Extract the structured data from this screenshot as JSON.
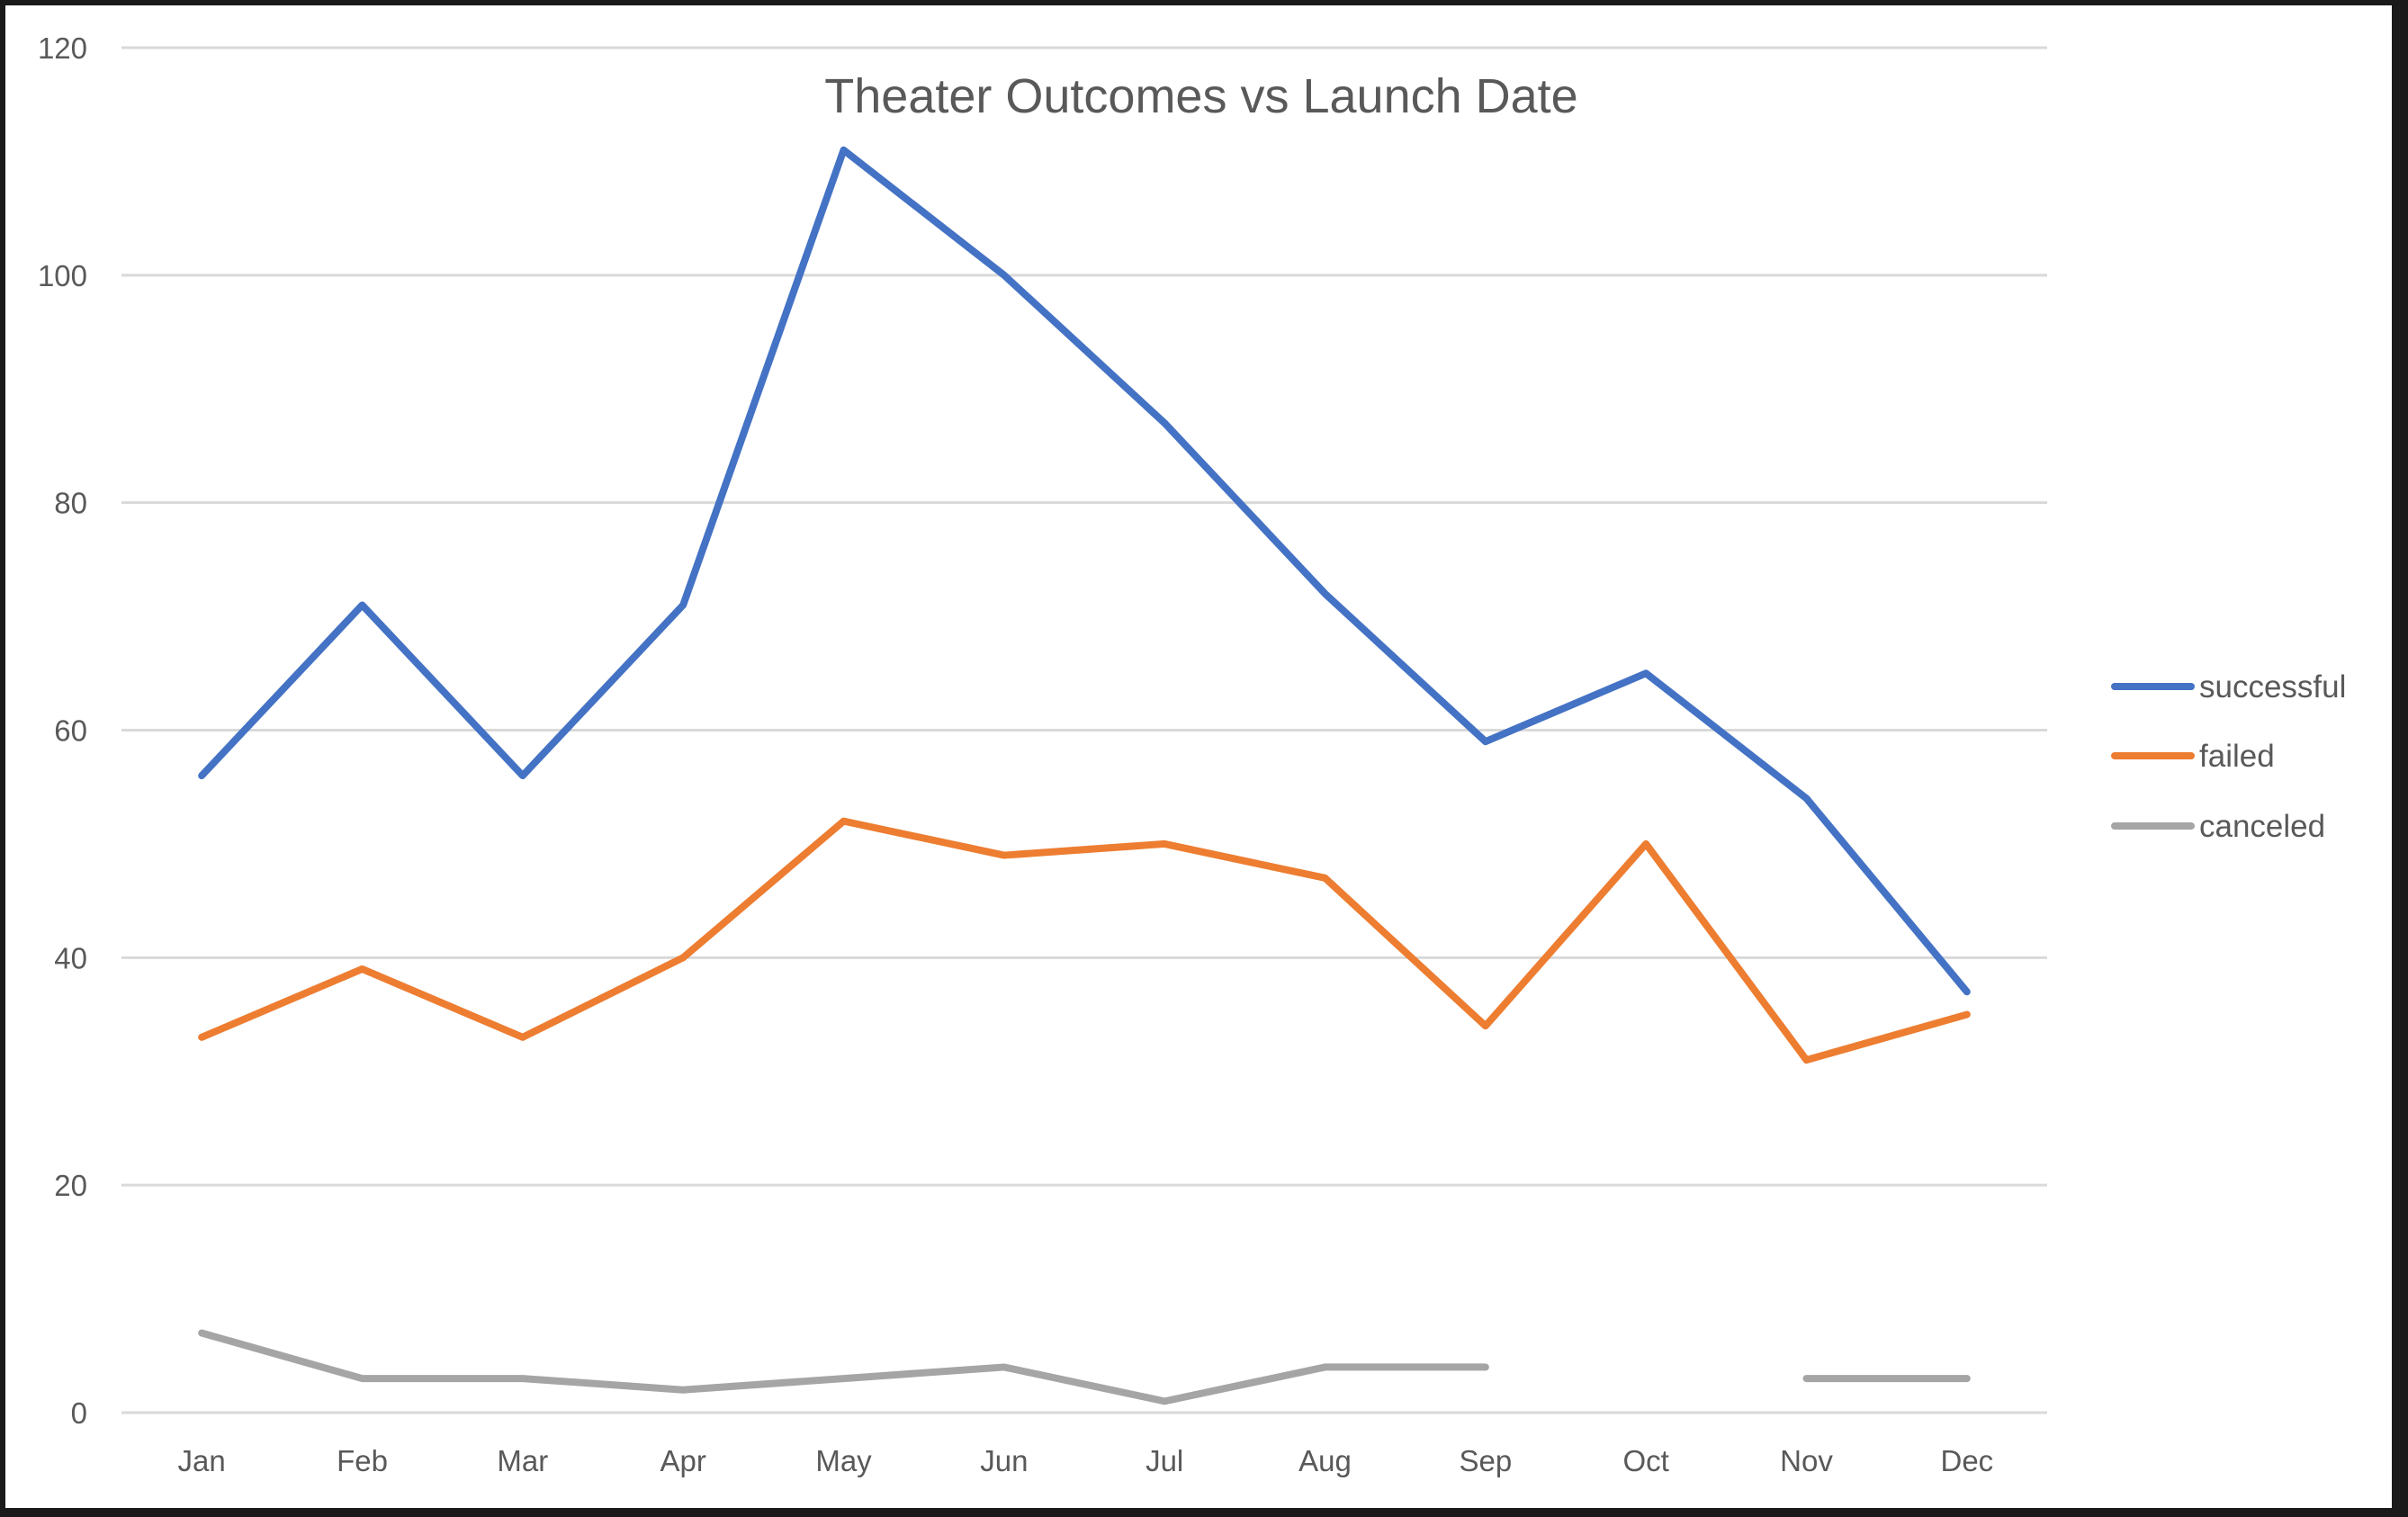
{
  "chart_data": {
    "type": "line",
    "title": "Theater Outcomes vs Launch Date",
    "xlabel": "",
    "ylabel": "",
    "categories": [
      "Jan",
      "Feb",
      "Mar",
      "Apr",
      "May",
      "Jun",
      "Jul",
      "Aug",
      "Sep",
      "Oct",
      "Nov",
      "Dec"
    ],
    "ylim": [
      0,
      120
    ],
    "yticks": [
      0,
      20,
      40,
      60,
      80,
      100,
      120
    ],
    "grid": true,
    "legend_position": "right",
    "series": [
      {
        "name": "successful",
        "color": "#4472C4",
        "values": [
          56,
          71,
          56,
          71,
          111,
          100,
          87,
          72,
          59,
          65,
          54,
          37
        ]
      },
      {
        "name": "failed",
        "color": "#ED7D31",
        "values": [
          33,
          39,
          33,
          40,
          52,
          49,
          50,
          47,
          34,
          50,
          31,
          35
        ]
      },
      {
        "name": "canceled",
        "color": "#A5A5A5",
        "values": [
          7,
          3,
          3,
          2,
          3,
          4,
          1,
          4,
          4,
          null,
          3,
          3
        ]
      }
    ]
  }
}
